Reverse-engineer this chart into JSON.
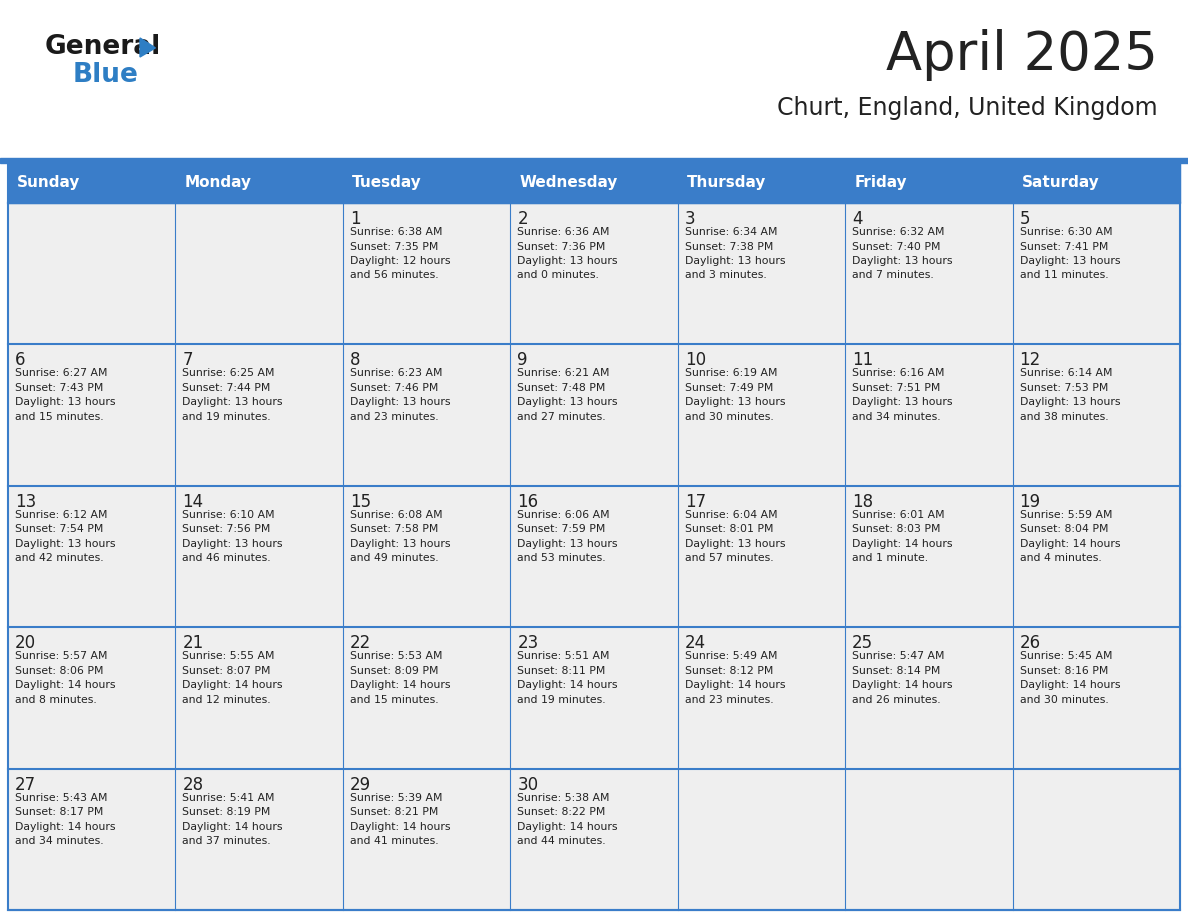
{
  "title": "April 2025",
  "subtitle": "Churt, England, United Kingdom",
  "days_of_week": [
    "Sunday",
    "Monday",
    "Tuesday",
    "Wednesday",
    "Thursday",
    "Friday",
    "Saturday"
  ],
  "header_bg": "#3A7DC9",
  "header_text": "#FFFFFF",
  "cell_bg": "#EFEFEF",
  "text_color": "#222222",
  "title_color": "#222222",
  "line_color": "#3A7DC9",
  "logo_black": "#1a1a1a",
  "logo_blue": "#2E7EC4",
  "weeks": [
    [
      {
        "day": "",
        "info": ""
      },
      {
        "day": "",
        "info": ""
      },
      {
        "day": "1",
        "info": "Sunrise: 6:38 AM\nSunset: 7:35 PM\nDaylight: 12 hours\nand 56 minutes."
      },
      {
        "day": "2",
        "info": "Sunrise: 6:36 AM\nSunset: 7:36 PM\nDaylight: 13 hours\nand 0 minutes."
      },
      {
        "day": "3",
        "info": "Sunrise: 6:34 AM\nSunset: 7:38 PM\nDaylight: 13 hours\nand 3 minutes."
      },
      {
        "day": "4",
        "info": "Sunrise: 6:32 AM\nSunset: 7:40 PM\nDaylight: 13 hours\nand 7 minutes."
      },
      {
        "day": "5",
        "info": "Sunrise: 6:30 AM\nSunset: 7:41 PM\nDaylight: 13 hours\nand 11 minutes."
      }
    ],
    [
      {
        "day": "6",
        "info": "Sunrise: 6:27 AM\nSunset: 7:43 PM\nDaylight: 13 hours\nand 15 minutes."
      },
      {
        "day": "7",
        "info": "Sunrise: 6:25 AM\nSunset: 7:44 PM\nDaylight: 13 hours\nand 19 minutes."
      },
      {
        "day": "8",
        "info": "Sunrise: 6:23 AM\nSunset: 7:46 PM\nDaylight: 13 hours\nand 23 minutes."
      },
      {
        "day": "9",
        "info": "Sunrise: 6:21 AM\nSunset: 7:48 PM\nDaylight: 13 hours\nand 27 minutes."
      },
      {
        "day": "10",
        "info": "Sunrise: 6:19 AM\nSunset: 7:49 PM\nDaylight: 13 hours\nand 30 minutes."
      },
      {
        "day": "11",
        "info": "Sunrise: 6:16 AM\nSunset: 7:51 PM\nDaylight: 13 hours\nand 34 minutes."
      },
      {
        "day": "12",
        "info": "Sunrise: 6:14 AM\nSunset: 7:53 PM\nDaylight: 13 hours\nand 38 minutes."
      }
    ],
    [
      {
        "day": "13",
        "info": "Sunrise: 6:12 AM\nSunset: 7:54 PM\nDaylight: 13 hours\nand 42 minutes."
      },
      {
        "day": "14",
        "info": "Sunrise: 6:10 AM\nSunset: 7:56 PM\nDaylight: 13 hours\nand 46 minutes."
      },
      {
        "day": "15",
        "info": "Sunrise: 6:08 AM\nSunset: 7:58 PM\nDaylight: 13 hours\nand 49 minutes."
      },
      {
        "day": "16",
        "info": "Sunrise: 6:06 AM\nSunset: 7:59 PM\nDaylight: 13 hours\nand 53 minutes."
      },
      {
        "day": "17",
        "info": "Sunrise: 6:04 AM\nSunset: 8:01 PM\nDaylight: 13 hours\nand 57 minutes."
      },
      {
        "day": "18",
        "info": "Sunrise: 6:01 AM\nSunset: 8:03 PM\nDaylight: 14 hours\nand 1 minute."
      },
      {
        "day": "19",
        "info": "Sunrise: 5:59 AM\nSunset: 8:04 PM\nDaylight: 14 hours\nand 4 minutes."
      }
    ],
    [
      {
        "day": "20",
        "info": "Sunrise: 5:57 AM\nSunset: 8:06 PM\nDaylight: 14 hours\nand 8 minutes."
      },
      {
        "day": "21",
        "info": "Sunrise: 5:55 AM\nSunset: 8:07 PM\nDaylight: 14 hours\nand 12 minutes."
      },
      {
        "day": "22",
        "info": "Sunrise: 5:53 AM\nSunset: 8:09 PM\nDaylight: 14 hours\nand 15 minutes."
      },
      {
        "day": "23",
        "info": "Sunrise: 5:51 AM\nSunset: 8:11 PM\nDaylight: 14 hours\nand 19 minutes."
      },
      {
        "day": "24",
        "info": "Sunrise: 5:49 AM\nSunset: 8:12 PM\nDaylight: 14 hours\nand 23 minutes."
      },
      {
        "day": "25",
        "info": "Sunrise: 5:47 AM\nSunset: 8:14 PM\nDaylight: 14 hours\nand 26 minutes."
      },
      {
        "day": "26",
        "info": "Sunrise: 5:45 AM\nSunset: 8:16 PM\nDaylight: 14 hours\nand 30 minutes."
      }
    ],
    [
      {
        "day": "27",
        "info": "Sunrise: 5:43 AM\nSunset: 8:17 PM\nDaylight: 14 hours\nand 34 minutes."
      },
      {
        "day": "28",
        "info": "Sunrise: 5:41 AM\nSunset: 8:19 PM\nDaylight: 14 hours\nand 37 minutes."
      },
      {
        "day": "29",
        "info": "Sunrise: 5:39 AM\nSunset: 8:21 PM\nDaylight: 14 hours\nand 41 minutes."
      },
      {
        "day": "30",
        "info": "Sunrise: 5:38 AM\nSunset: 8:22 PM\nDaylight: 14 hours\nand 44 minutes."
      },
      {
        "day": "",
        "info": ""
      },
      {
        "day": "",
        "info": ""
      },
      {
        "day": "",
        "info": ""
      }
    ]
  ],
  "fig_width": 11.88,
  "fig_height": 9.18,
  "dpi": 100
}
